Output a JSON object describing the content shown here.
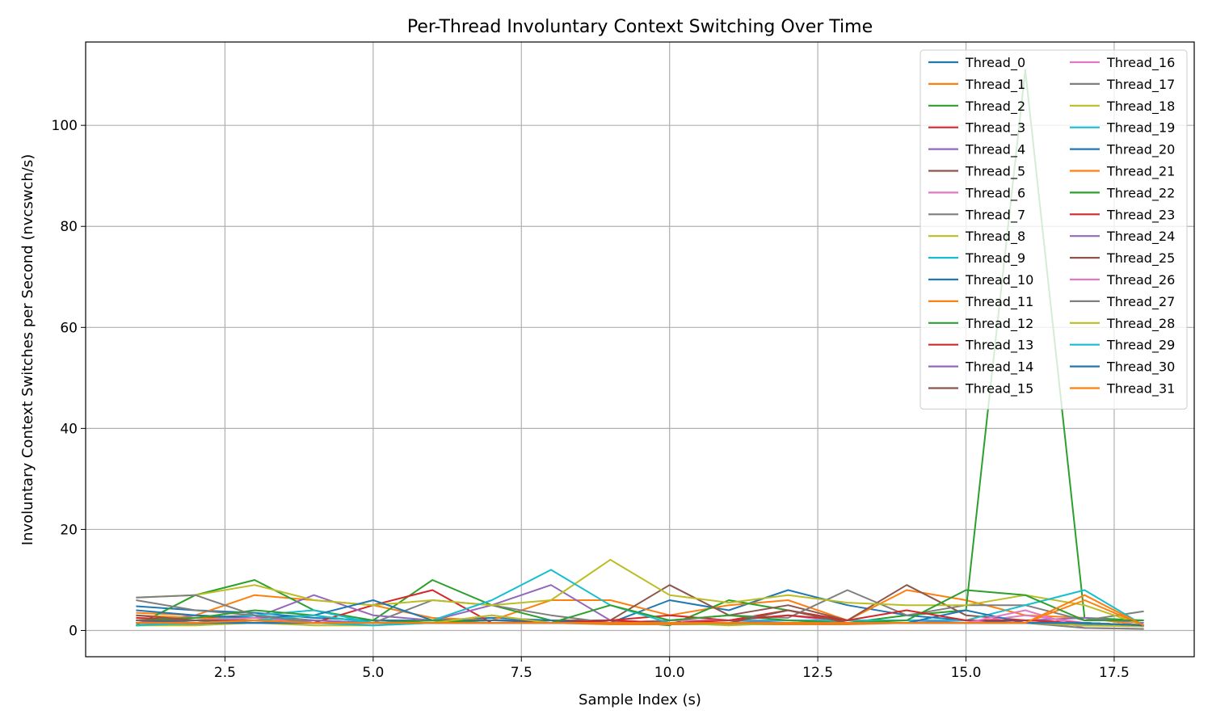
{
  "chart_data": {
    "type": "line",
    "title": "Per-Thread Involuntary Context Switching Over Time",
    "xlabel": "Sample Index (s)",
    "ylabel": "Involuntary Context Switches per Second (nvcswch/s)",
    "xlim": [
      0.15,
      18.85
    ],
    "ylim": [
      -5.2,
      116.5
    ],
    "xticks": [
      2.5,
      5.0,
      7.5,
      10.0,
      12.5,
      15.0,
      17.5
    ],
    "xtick_labels": [
      "2.5",
      "5.0",
      "7.5",
      "10.0",
      "12.5",
      "15.0",
      "17.5"
    ],
    "yticks": [
      0,
      20,
      40,
      60,
      80,
      100
    ],
    "ytick_labels": [
      "0",
      "20",
      "40",
      "60",
      "80",
      "100"
    ],
    "grid": true,
    "legend_position": "top-right",
    "x": [
      1,
      2,
      3,
      4,
      5,
      6,
      7,
      8,
      9,
      10,
      11,
      12,
      13,
      14,
      15,
      16,
      17,
      18
    ],
    "series": [
      {
        "name": "Thread_0",
        "color": "#1f77b4",
        "values": [
          4.8,
          4.0,
          3.5,
          2.5,
          2.0,
          2.0,
          2.5,
          2.0,
          1.5,
          6.0,
          4.0,
          8.0,
          5.0,
          3.0,
          2.0,
          1.5,
          1.2,
          1.0
        ]
      },
      {
        "name": "Thread_1",
        "color": "#ff7f0e",
        "values": [
          3.5,
          3.0,
          7.0,
          6.0,
          5.0,
          2.5,
          2.0,
          6.0,
          6.0,
          3.0,
          5.0,
          6.0,
          2.0,
          8.0,
          6.0,
          3.0,
          2.5,
          1.0
        ]
      },
      {
        "name": "Thread_2",
        "color": "#2ca02c",
        "values": [
          1.0,
          7.0,
          10.0,
          4.0,
          2.0,
          10.0,
          5.0,
          2.0,
          2.0,
          1.0,
          6.0,
          4.0,
          1.5,
          3.0,
          4.0,
          111.0,
          2.5,
          2.0
        ]
      },
      {
        "name": "Thread_3",
        "color": "#d62728",
        "values": [
          2.5,
          2.0,
          2.0,
          1.5,
          5.0,
          8.0,
          1.5,
          1.5,
          2.0,
          3.0,
          2.0,
          4.0,
          2.0,
          2.0,
          2.0,
          2.0,
          1.5,
          1.0
        ]
      },
      {
        "name": "Thread_4",
        "color": "#9467bd",
        "values": [
          1.5,
          3.0,
          2.5,
          7.0,
          3.0,
          2.0,
          5.0,
          9.0,
          2.0,
          1.5,
          1.5,
          2.0,
          1.5,
          1.5,
          2.0,
          2.0,
          2.5,
          1.5
        ]
      },
      {
        "name": "Thread_5",
        "color": "#8c564b",
        "values": [
          2.0,
          2.5,
          3.0,
          2.0,
          1.5,
          2.0,
          1.5,
          2.0,
          2.0,
          9.0,
          3.0,
          5.0,
          2.0,
          9.0,
          3.0,
          2.0,
          1.5,
          1.0
        ]
      },
      {
        "name": "Thread_6",
        "color": "#e377c2",
        "values": [
          1.0,
          1.5,
          2.0,
          1.5,
          1.5,
          1.5,
          3.0,
          1.5,
          1.5,
          2.0,
          2.0,
          3.0,
          1.5,
          1.5,
          1.5,
          3.0,
          1.5,
          1.0
        ]
      },
      {
        "name": "Thread_7",
        "color": "#7f7f7f",
        "values": [
          6.0,
          4.0,
          3.0,
          2.0,
          1.5,
          6.0,
          5.0,
          3.0,
          1.5,
          2.0,
          3.0,
          2.5,
          8.0,
          3.0,
          5.0,
          5.0,
          2.0,
          3.8
        ]
      },
      {
        "name": "Thread_8",
        "color": "#bcbd22",
        "values": [
          6.5,
          7.0,
          9.0,
          6.0,
          5.0,
          6.0,
          5.0,
          6.0,
          14.0,
          7.0,
          5.5,
          7.0,
          5.5,
          5.0,
          5.0,
          7.0,
          5.0,
          1.0
        ]
      },
      {
        "name": "Thread_9",
        "color": "#17becf",
        "values": [
          1.0,
          2.0,
          3.0,
          4.0,
          1.5,
          2.0,
          6.0,
          12.0,
          5.0,
          1.5,
          2.0,
          2.0,
          2.0,
          2.0,
          2.0,
          5.0,
          8.0,
          1.0
        ]
      },
      {
        "name": "Thread_10",
        "color": "#1f77b4",
        "values": [
          4.0,
          3.0,
          2.5,
          3.0,
          6.0,
          2.0,
          2.0,
          2.0,
          1.5,
          1.5,
          1.5,
          1.5,
          1.5,
          1.5,
          4.0,
          1.5,
          1.0,
          1.0
        ]
      },
      {
        "name": "Thread_11",
        "color": "#ff7f0e",
        "values": [
          3.0,
          2.5,
          2.0,
          1.5,
          1.5,
          2.0,
          1.5,
          1.5,
          1.2,
          1.2,
          1.2,
          1.2,
          1.2,
          1.5,
          1.5,
          1.5,
          6.0,
          1.0
        ]
      },
      {
        "name": "Thread_12",
        "color": "#2ca02c",
        "values": [
          2.0,
          2.5,
          4.0,
          3.0,
          1.5,
          2.0,
          1.5,
          1.5,
          5.0,
          2.0,
          3.0,
          2.0,
          1.5,
          2.0,
          8.0,
          7.0,
          2.0,
          2.0
        ]
      },
      {
        "name": "Thread_13",
        "color": "#d62728",
        "values": [
          1.5,
          2.0,
          2.0,
          1.5,
          1.5,
          1.5,
          1.5,
          1.5,
          2.0,
          1.5,
          2.0,
          3.0,
          2.0,
          4.0,
          2.0,
          2.0,
          1.5,
          1.0
        ]
      },
      {
        "name": "Thread_14",
        "color": "#9467bd",
        "values": [
          1.0,
          1.5,
          1.5,
          2.0,
          1.5,
          1.5,
          1.5,
          1.5,
          1.5,
          1.5,
          1.5,
          1.5,
          1.5,
          1.5,
          1.5,
          1.5,
          1.5,
          1.0
        ]
      },
      {
        "name": "Thread_15",
        "color": "#8c564b",
        "values": [
          3.0,
          2.0,
          2.0,
          1.5,
          1.5,
          1.5,
          1.5,
          1.5,
          1.5,
          1.5,
          1.5,
          4.0,
          1.5,
          1.5,
          1.5,
          1.5,
          1.5,
          1.0
        ]
      },
      {
        "name": "Thread_16",
        "color": "#e377c2",
        "values": [
          1.5,
          2.0,
          2.5,
          1.5,
          1.5,
          1.5,
          1.5,
          1.5,
          1.5,
          1.5,
          1.5,
          1.5,
          1.5,
          1.5,
          1.5,
          4.0,
          0.5,
          0.3
        ]
      },
      {
        "name": "Thread_17",
        "color": "#7f7f7f",
        "values": [
          1.0,
          1.2,
          1.5,
          1.5,
          1.5,
          1.5,
          1.5,
          1.5,
          1.5,
          1.5,
          1.5,
          1.5,
          1.5,
          1.5,
          1.5,
          1.5,
          0.5,
          0.3
        ]
      },
      {
        "name": "Thread_18",
        "color": "#bcbd22",
        "values": [
          1.0,
          1.0,
          1.5,
          1.0,
          1.0,
          1.5,
          3.0,
          1.5,
          1.5,
          1.5,
          1.0,
          1.5,
          1.5,
          1.5,
          1.5,
          1.5,
          1.0,
          0.8
        ]
      },
      {
        "name": "Thread_19",
        "color": "#17becf",
        "values": [
          1.0,
          1.5,
          2.0,
          3.0,
          1.5,
          1.5,
          1.5,
          1.5,
          1.5,
          1.5,
          1.5,
          1.5,
          1.5,
          1.5,
          1.5,
          1.5,
          1.5,
          1.0
        ]
      },
      {
        "name": "Thread_20",
        "color": "#1f77b4",
        "values": [
          1.5,
          2.0,
          1.5,
          1.5,
          1.5,
          1.5,
          1.5,
          1.5,
          1.5,
          1.5,
          1.5,
          1.5,
          1.5,
          1.5,
          1.5,
          1.5,
          1.5,
          1.0
        ]
      },
      {
        "name": "Thread_21",
        "color": "#ff7f0e",
        "values": [
          2.0,
          2.0,
          2.0,
          1.5,
          1.5,
          1.5,
          1.5,
          1.5,
          1.5,
          1.5,
          1.5,
          1.5,
          1.5,
          1.5,
          1.5,
          1.5,
          1.5,
          1.0
        ]
      },
      {
        "name": "Thread_22",
        "color": "#2ca02c",
        "values": [
          1.5,
          1.5,
          2.0,
          1.5,
          1.5,
          1.5,
          1.5,
          1.5,
          1.5,
          1.5,
          1.5,
          1.5,
          1.5,
          1.5,
          1.5,
          1.5,
          1.5,
          1.0
        ]
      },
      {
        "name": "Thread_23",
        "color": "#d62728",
        "values": [
          2.0,
          2.0,
          2.0,
          1.5,
          1.5,
          1.5,
          1.5,
          1.5,
          1.5,
          1.5,
          1.5,
          1.5,
          1.5,
          1.5,
          1.5,
          1.5,
          1.5,
          1.0
        ]
      },
      {
        "name": "Thread_24",
        "color": "#9467bd",
        "values": [
          1.5,
          1.5,
          1.5,
          1.5,
          1.5,
          1.5,
          1.5,
          1.5,
          1.5,
          1.5,
          1.5,
          1.5,
          1.5,
          1.5,
          1.5,
          1.5,
          1.5,
          1.0
        ]
      },
      {
        "name": "Thread_25",
        "color": "#8c564b",
        "values": [
          2.0,
          2.0,
          2.0,
          1.5,
          1.5,
          1.5,
          1.5,
          1.5,
          1.5,
          1.5,
          1.5,
          1.5,
          1.5,
          1.5,
          1.5,
          1.5,
          1.5,
          1.0
        ]
      },
      {
        "name": "Thread_26",
        "color": "#e377c2",
        "values": [
          1.5,
          1.5,
          1.5,
          1.5,
          1.5,
          1.5,
          1.5,
          1.5,
          1.5,
          1.5,
          1.5,
          1.5,
          1.5,
          1.5,
          1.5,
          1.5,
          1.5,
          1.0
        ]
      },
      {
        "name": "Thread_27",
        "color": "#7f7f7f",
        "values": [
          6.5,
          7.0,
          3.0,
          1.5,
          1.5,
          1.5,
          1.5,
          1.5,
          1.5,
          1.5,
          1.5,
          1.5,
          1.5,
          1.5,
          1.5,
          1.5,
          1.5,
          1.0
        ]
      },
      {
        "name": "Thread_28",
        "color": "#bcbd22",
        "values": [
          1.0,
          1.5,
          2.0,
          1.5,
          1.5,
          1.5,
          1.5,
          1.5,
          1.5,
          1.5,
          1.5,
          1.5,
          1.5,
          1.5,
          1.5,
          1.5,
          1.5,
          1.0
        ]
      },
      {
        "name": "Thread_29",
        "color": "#17becf",
        "values": [
          1.0,
          1.5,
          1.5,
          1.5,
          1.0,
          1.5,
          1.5,
          1.5,
          1.5,
          1.5,
          1.5,
          1.5,
          1.5,
          1.5,
          1.5,
          1.5,
          1.5,
          1.0
        ]
      },
      {
        "name": "Thread_30",
        "color": "#1f77b4",
        "values": [
          1.5,
          1.5,
          1.5,
          1.5,
          1.5,
          1.5,
          1.5,
          1.5,
          1.5,
          1.5,
          1.5,
          1.5,
          1.5,
          1.5,
          1.5,
          1.5,
          1.5,
          1.0
        ]
      },
      {
        "name": "Thread_31",
        "color": "#ff7f0e",
        "values": [
          1.5,
          1.5,
          2.0,
          1.5,
          1.5,
          1.5,
          1.5,
          1.5,
          1.5,
          1.5,
          1.5,
          1.5,
          1.5,
          1.5,
          1.5,
          1.5,
          7.0,
          1.0
        ]
      }
    ]
  }
}
